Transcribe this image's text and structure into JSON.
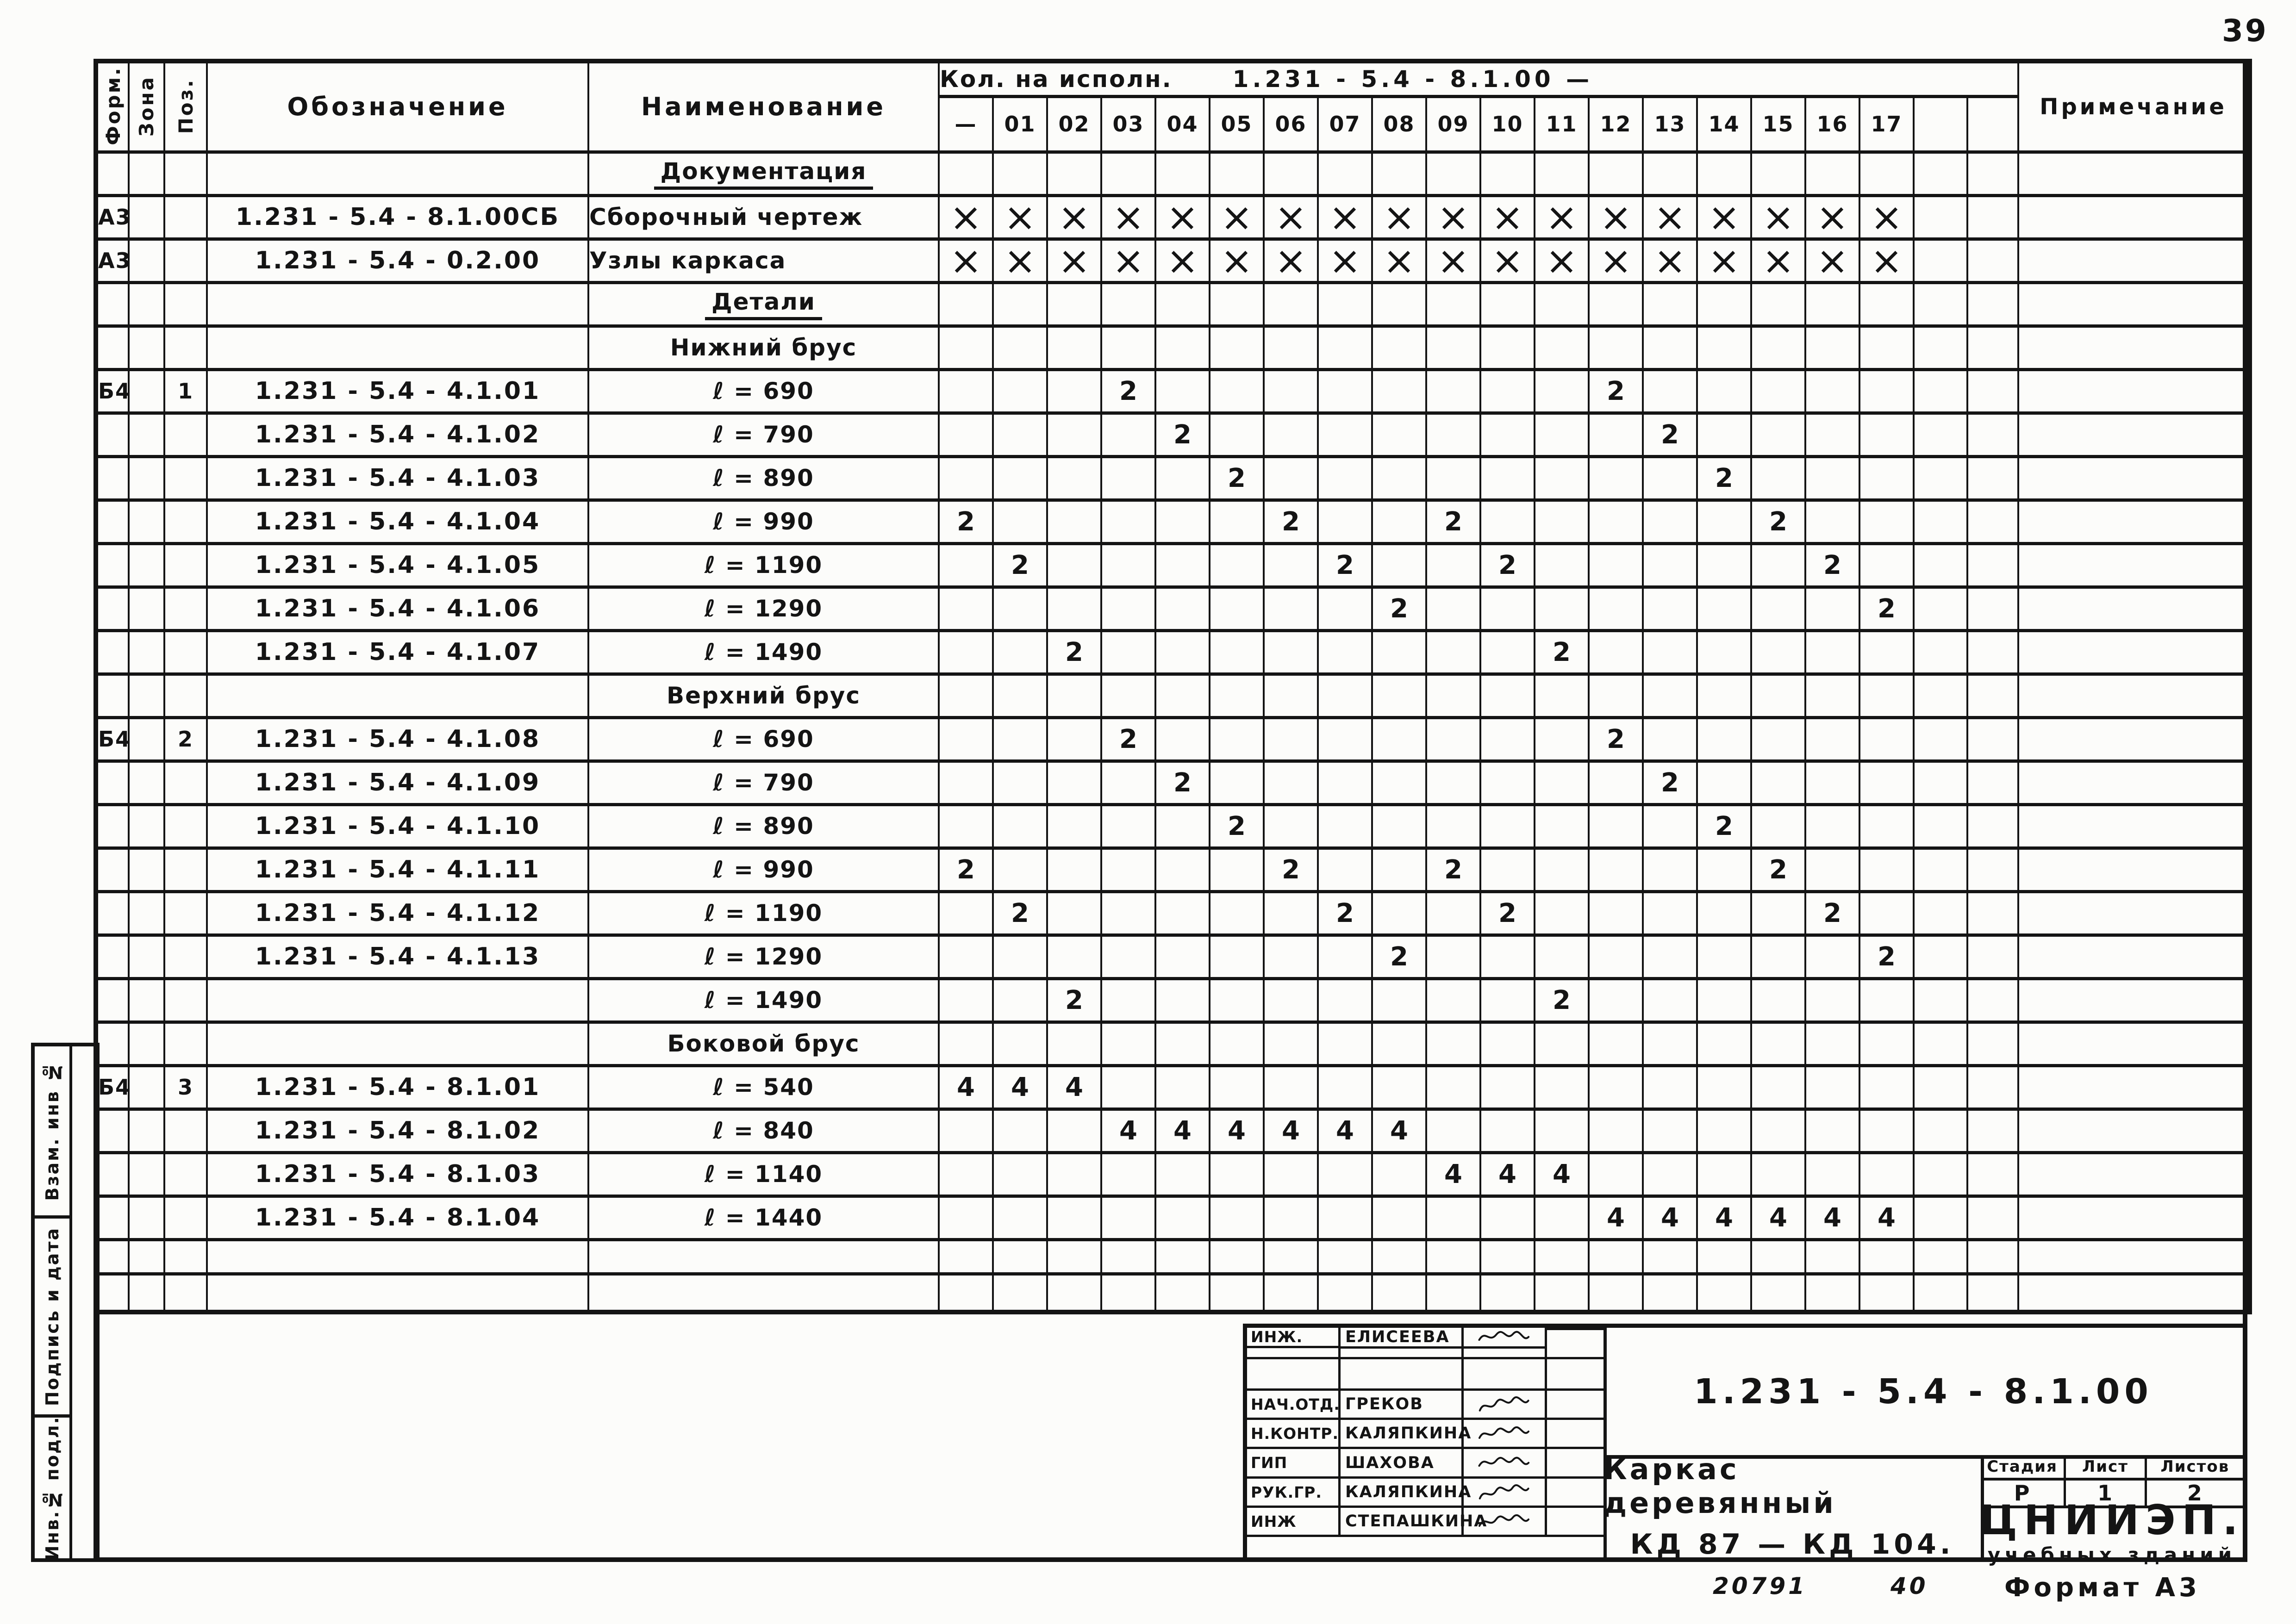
{
  "page": {
    "number": "39",
    "order_number": "20791",
    "order_number2": "40",
    "format_label": "Формат А3"
  },
  "sidebar": {
    "items": [
      {
        "label": "Взам. инв №"
      },
      {
        "label": "Подпись и дата"
      },
      {
        "label": "Инв.№ подл."
      }
    ]
  },
  "table": {
    "header": {
      "form": "Форм.",
      "zone": "Зона",
      "pos": "Поз.",
      "designation": "Обозначение",
      "name": "Наименование",
      "qty_caption": "Кол. на исполн.",
      "qty_code": "1.231 - 5.4 - 8.1.00 —",
      "note": "Примечание"
    },
    "qty_columns": [
      "—",
      "01",
      "02",
      "03",
      "04",
      "05",
      "06",
      "07",
      "08",
      "09",
      "10",
      "11",
      "12",
      "13",
      "14",
      "15",
      "16",
      "17"
    ],
    "rows": [
      {
        "kind": "section",
        "text": "Документация",
        "underline": true
      },
      {
        "kind": "item",
        "form": "А3",
        "pos": "",
        "designation": "1.231 - 5.4 - 8.1.00СБ",
        "name": "Сборочный чертеж",
        "marks_all": "×"
      },
      {
        "kind": "item",
        "form": "А3",
        "pos": "",
        "designation": "1.231 - 5.4 - 0.2.00",
        "name": "Узлы каркаса",
        "marks_all": "×"
      },
      {
        "kind": "section",
        "text": "Детали",
        "underline": true
      },
      {
        "kind": "section",
        "text": "Нижний брус",
        "underline": false
      },
      {
        "kind": "item",
        "form": "Б4",
        "pos": "1",
        "designation": "1.231 - 5.4 - 4.1.01",
        "name": "ℓ = 690",
        "marks": {
          "03": "2",
          "12": "2"
        }
      },
      {
        "kind": "item",
        "form": "",
        "pos": "",
        "designation": "1.231 - 5.4 - 4.1.02",
        "name": "ℓ = 790",
        "marks": {
          "04": "2",
          "13": "2"
        }
      },
      {
        "kind": "item",
        "form": "",
        "pos": "",
        "designation": "1.231 - 5.4 - 4.1.03",
        "name": "ℓ = 890",
        "marks": {
          "05": "2",
          "14": "2"
        }
      },
      {
        "kind": "item",
        "form": "",
        "pos": "",
        "designation": "1.231 - 5.4 - 4.1.04",
        "name": "ℓ = 990",
        "marks": {
          "—": "2",
          "06": "2",
          "09": "2",
          "15": "2"
        }
      },
      {
        "kind": "item",
        "form": "",
        "pos": "",
        "designation": "1.231 - 5.4 - 4.1.05",
        "name": "ℓ = 1190",
        "marks": {
          "01": "2",
          "07": "2",
          "10": "2",
          "16": "2"
        }
      },
      {
        "kind": "item",
        "form": "",
        "pos": "",
        "designation": "1.231 - 5.4 - 4.1.06",
        "name": "ℓ = 1290",
        "marks": {
          "08": "2",
          "17": "2"
        }
      },
      {
        "kind": "item",
        "form": "",
        "pos": "",
        "designation": "1.231 - 5.4 - 4.1.07",
        "name": "ℓ = 1490",
        "marks": {
          "02": "2",
          "11": "2"
        }
      },
      {
        "kind": "section",
        "text": "Верхний брус",
        "underline": false
      },
      {
        "kind": "item",
        "form": "Б4",
        "pos": "2",
        "designation": "1.231 - 5.4 - 4.1.08",
        "name": "ℓ = 690",
        "marks": {
          "03": "2",
          "12": "2"
        }
      },
      {
        "kind": "item",
        "form": "",
        "pos": "",
        "designation": "1.231 - 5.4 - 4.1.09",
        "name": "ℓ = 790",
        "marks": {
          "04": "2",
          "13": "2"
        }
      },
      {
        "kind": "item",
        "form": "",
        "pos": "",
        "designation": "1.231 - 5.4 - 4.1.10",
        "name": "ℓ = 890",
        "marks": {
          "05": "2",
          "14": "2"
        }
      },
      {
        "kind": "item",
        "form": "",
        "pos": "",
        "designation": "1.231 - 5.4 - 4.1.11",
        "name": "ℓ = 990",
        "marks": {
          "—": "2",
          "06": "2",
          "09": "2",
          "15": "2"
        }
      },
      {
        "kind": "item",
        "form": "",
        "pos": "",
        "designation": "1.231 - 5.4 - 4.1.12",
        "name": "ℓ = 1190",
        "marks": {
          "01": "2",
          "07": "2",
          "10": "2",
          "16": "2"
        }
      },
      {
        "kind": "item",
        "form": "",
        "pos": "",
        "designation": "1.231 - 5.4 - 4.1.13",
        "name": "ℓ = 1290",
        "marks": {
          "08": "2",
          "17": "2"
        }
      },
      {
        "kind": "item",
        "form": "",
        "pos": "",
        "designation": "",
        "name": "ℓ = 1490",
        "marks": {
          "02": "2",
          "11": "2"
        }
      },
      {
        "kind": "section",
        "text": "Боковой брус",
        "underline": false
      },
      {
        "kind": "item",
        "form": "Б4",
        "pos": "3",
        "designation": "1.231 - 5.4 - 8.1.01",
        "name": "ℓ = 540",
        "marks": {
          "—": "4",
          "01": "4",
          "02": "4"
        }
      },
      {
        "kind": "item",
        "form": "",
        "pos": "",
        "designation": "1.231 - 5.4 - 8.1.02",
        "name": "ℓ = 840",
        "marks": {
          "03": "4",
          "04": "4",
          "05": "4",
          "06": "4",
          "07": "4",
          "08": "4"
        }
      },
      {
        "kind": "item",
        "form": "",
        "pos": "",
        "designation": "1.231 - 5.4 - 8.1.03",
        "name": "ℓ = 1140",
        "marks": {
          "09": "4",
          "10": "4",
          "11": "4"
        }
      },
      {
        "kind": "item",
        "form": "",
        "pos": "",
        "designation": "1.231 - 5.4 - 8.1.04",
        "name": "ℓ = 1440",
        "marks": {
          "12": "4",
          "13": "4",
          "14": "4",
          "15": "4",
          "16": "4",
          "17": "4"
        }
      },
      {
        "kind": "empty"
      },
      {
        "kind": "empty"
      }
    ]
  },
  "stamp": {
    "signers": [
      {
        "role": "НАЧ.ОТД.",
        "name": "ГРЕКОВ"
      },
      {
        "role": "Н.КОНТР.",
        "name": "КАЛЯПКИНА"
      },
      {
        "role": "ГИП",
        "name": "ШАХОВА"
      },
      {
        "role": "РУК.ГР.",
        "name": "КАЛЯПКИНА"
      },
      {
        "role": "ИНЖ",
        "name": "СТЕПАШКИНА"
      },
      {
        "role": "ИНЖ.",
        "name": "ЕЛИСЕЕВА"
      }
    ],
    "doc_code": "1.231 - 5.4 - 8.1.00",
    "title_line1": "Каркас деревянный",
    "title_line2": "КД 87 — КД 104.",
    "stage_headers": [
      "Стадия",
      "Лист",
      "Листов"
    ],
    "stage_values": [
      "Р",
      "1",
      "2"
    ],
    "org_line1": "ЦНИИЭП.",
    "org_line2": "учебных зданий"
  }
}
